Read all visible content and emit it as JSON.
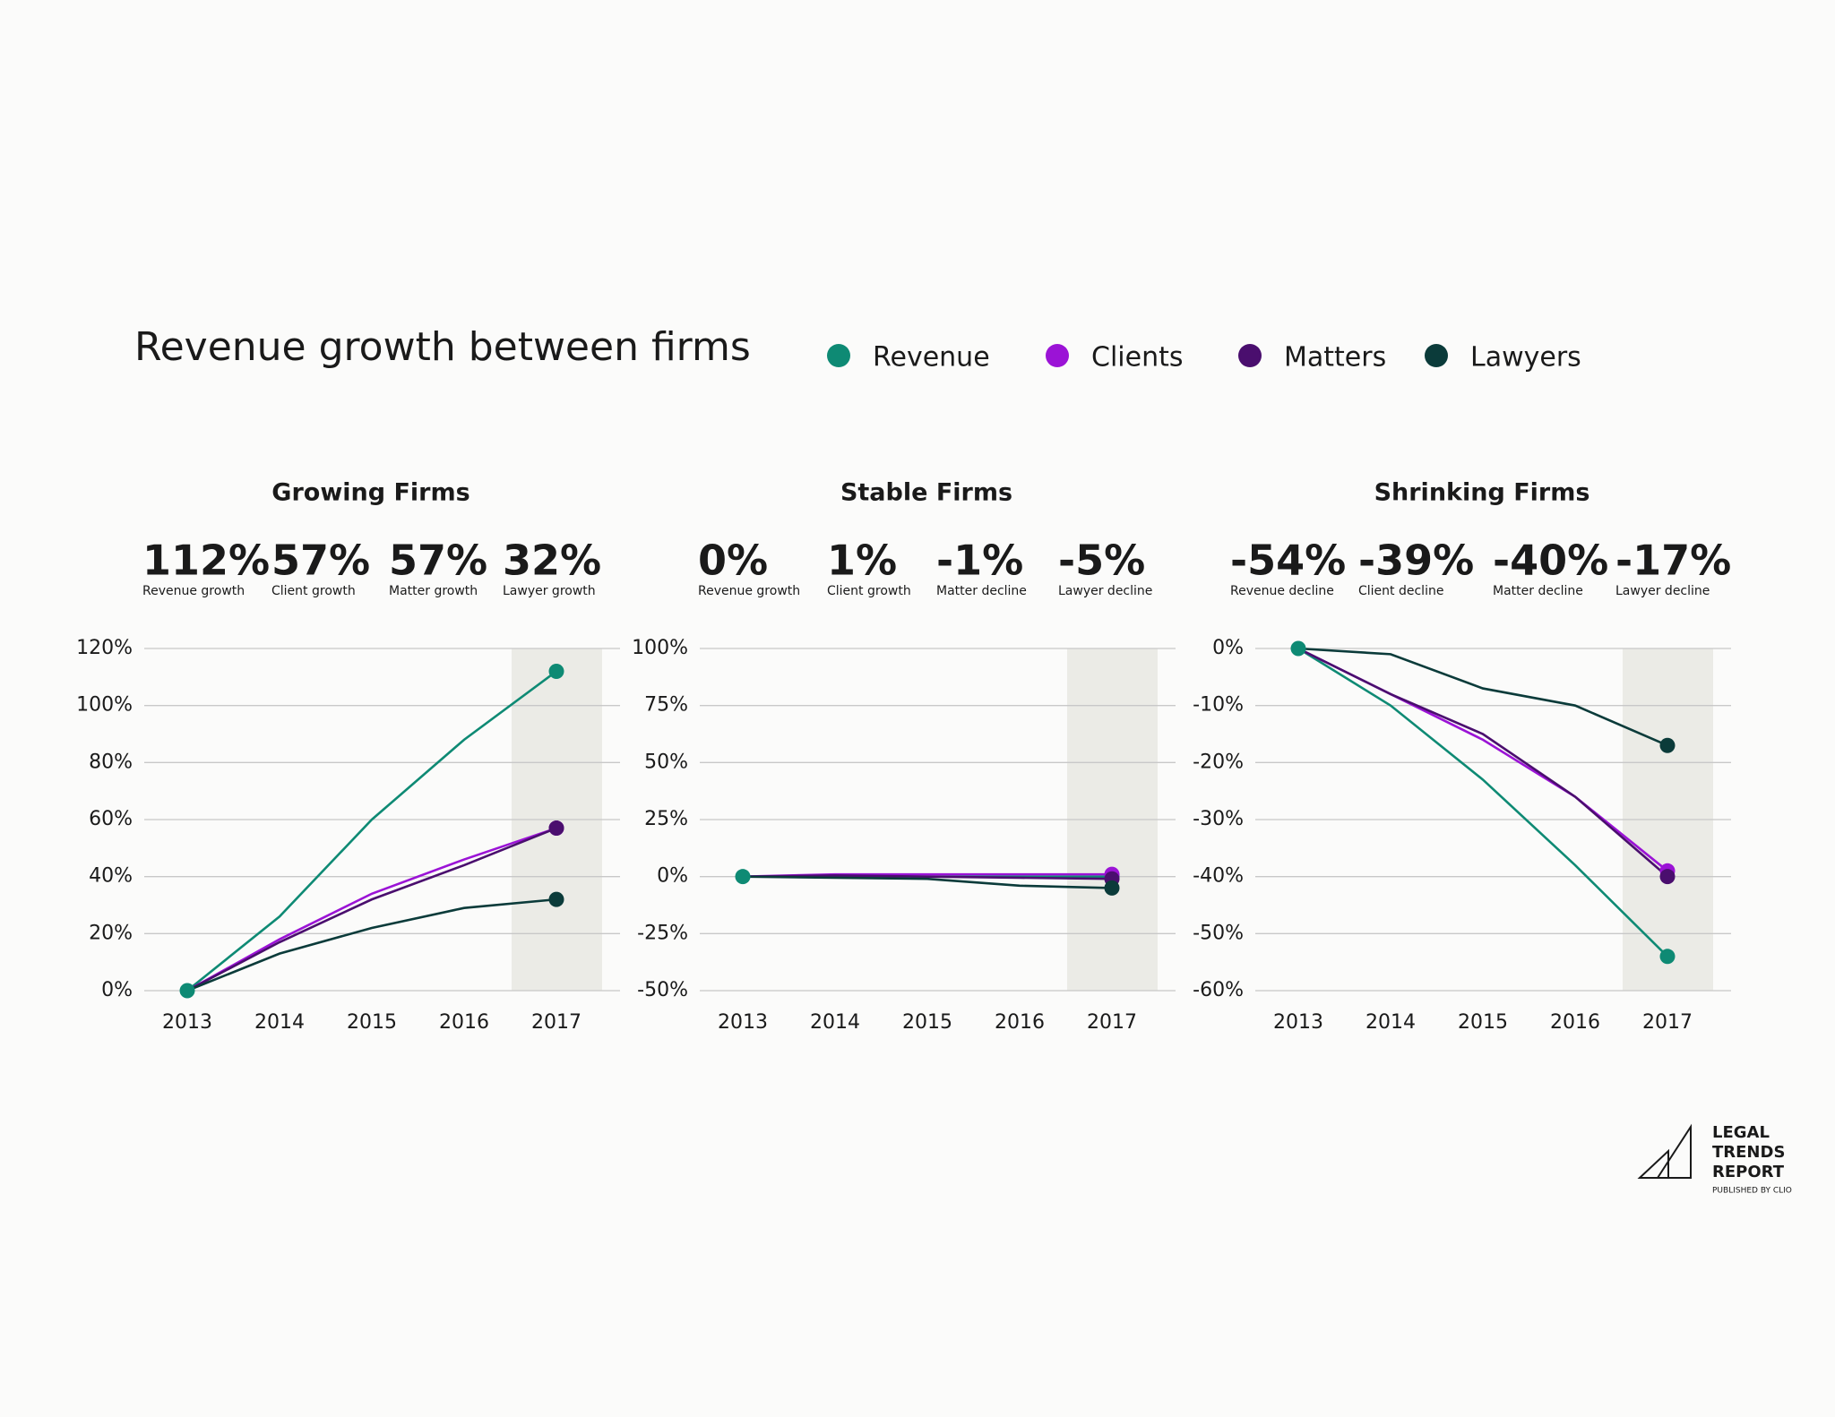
{
  "title": "Revenue growth between firms",
  "logo": {
    "lines": [
      "LEGAL",
      "TRENDS",
      "REPORT"
    ],
    "tagline": "PUBLISHED BY CLIO"
  },
  "chart_data": [
    {
      "type": "line",
      "title": "Growing Firms",
      "stats": [
        {
          "text": "112%",
          "caption": "Revenue growth"
        },
        {
          "text": "57%",
          "caption": "Client growth"
        },
        {
          "text": "57%",
          "caption": "Matter growth"
        },
        {
          "text": "32%",
          "caption": "Lawyer growth"
        }
      ],
      "categories": [
        "2013",
        "2014",
        "2015",
        "2016",
        "2017"
      ],
      "series": [
        {
          "name": "Revenue",
          "color": "#0e8a74",
          "values": [
            0,
            26,
            60,
            88,
            112
          ]
        },
        {
          "name": "Clients",
          "color": "#9b13d6",
          "values": [
            0,
            18,
            34,
            46,
            57
          ]
        },
        {
          "name": "Matters",
          "color": "#4a0e6e",
          "values": [
            0,
            17,
            32,
            44,
            57
          ]
        },
        {
          "name": "Lawyers",
          "color": "#0b3b3a",
          "values": [
            0,
            13,
            22,
            29,
            32
          ]
        }
      ],
      "ylim": [
        0,
        120
      ],
      "yticks": [
        {
          "value": 0,
          "label": "0%"
        },
        {
          "value": 20,
          "label": "20%"
        },
        {
          "value": 40,
          "label": "40%"
        },
        {
          "value": 60,
          "label": "60%"
        },
        {
          "value": 80,
          "label": "80%"
        },
        {
          "value": 100,
          "label": "100%"
        },
        {
          "value": 120,
          "label": "120%"
        }
      ],
      "grid": true,
      "highlight_last": true
    },
    {
      "type": "line",
      "title": "Stable Firms",
      "stats": [
        {
          "text": "0%",
          "caption": "Revenue growth"
        },
        {
          "text": "1%",
          "caption": "Client growth"
        },
        {
          "text": "-1%",
          "caption": "Matter decline"
        },
        {
          "text": "-5%",
          "caption": "Lawyer decline"
        }
      ],
      "categories": [
        "2013",
        "2014",
        "2015",
        "2016",
        "2017"
      ],
      "series": [
        {
          "name": "Revenue",
          "color": "#0e8a74",
          "values": [
            0,
            0,
            0,
            0,
            0
          ]
        },
        {
          "name": "Clients",
          "color": "#9b13d6",
          "values": [
            0,
            1,
            1,
            1,
            1
          ]
        },
        {
          "name": "Matters",
          "color": "#4a0e6e",
          "values": [
            0,
            0.5,
            0,
            -0.5,
            -1
          ]
        },
        {
          "name": "Lawyers",
          "color": "#0b3b3a",
          "values": [
            0,
            -0.5,
            -1,
            -4,
            -5
          ]
        }
      ],
      "ylim": [
        -50,
        100
      ],
      "yticks": [
        {
          "value": -50,
          "label": "-50%"
        },
        {
          "value": -25,
          "label": "-25%"
        },
        {
          "value": 0,
          "label": "0%"
        },
        {
          "value": 25,
          "label": "25%"
        },
        {
          "value": 50,
          "label": "50%"
        },
        {
          "value": 75,
          "label": "75%"
        },
        {
          "value": 100,
          "label": "100%"
        }
      ],
      "grid": true,
      "highlight_last": true
    },
    {
      "type": "line",
      "title": "Shrinking Firms",
      "stats": [
        {
          "text": "-54%",
          "caption": "Revenue decline"
        },
        {
          "text": "-39%",
          "caption": "Client decline"
        },
        {
          "text": "-40%",
          "caption": "Matter decline"
        },
        {
          "text": "-17%",
          "caption": "Lawyer decline"
        }
      ],
      "categories": [
        "2013",
        "2014",
        "2015",
        "2016",
        "2017"
      ],
      "series": [
        {
          "name": "Revenue",
          "color": "#0e8a74",
          "values": [
            0,
            -10,
            -23,
            -38,
            -54
          ]
        },
        {
          "name": "Clients",
          "color": "#9b13d6",
          "values": [
            0,
            -8,
            -16,
            -26,
            -39
          ]
        },
        {
          "name": "Matters",
          "color": "#4a0e6e",
          "values": [
            0,
            -8,
            -15,
            -26,
            -40
          ]
        },
        {
          "name": "Lawyers",
          "color": "#0b3b3a",
          "values": [
            0,
            -1,
            -7,
            -10,
            -17
          ]
        }
      ],
      "ylim": [
        -60,
        0
      ],
      "yticks": [
        {
          "value": -60,
          "label": "-60%"
        },
        {
          "value": -50,
          "label": "-50%"
        },
        {
          "value": -40,
          "label": "-40%"
        },
        {
          "value": -30,
          "label": "-30%"
        },
        {
          "value": -20,
          "label": "-20%"
        },
        {
          "value": -10,
          "label": "-10%"
        },
        {
          "value": 0,
          "label": "0%"
        }
      ],
      "grid": true,
      "highlight_last": true
    }
  ]
}
